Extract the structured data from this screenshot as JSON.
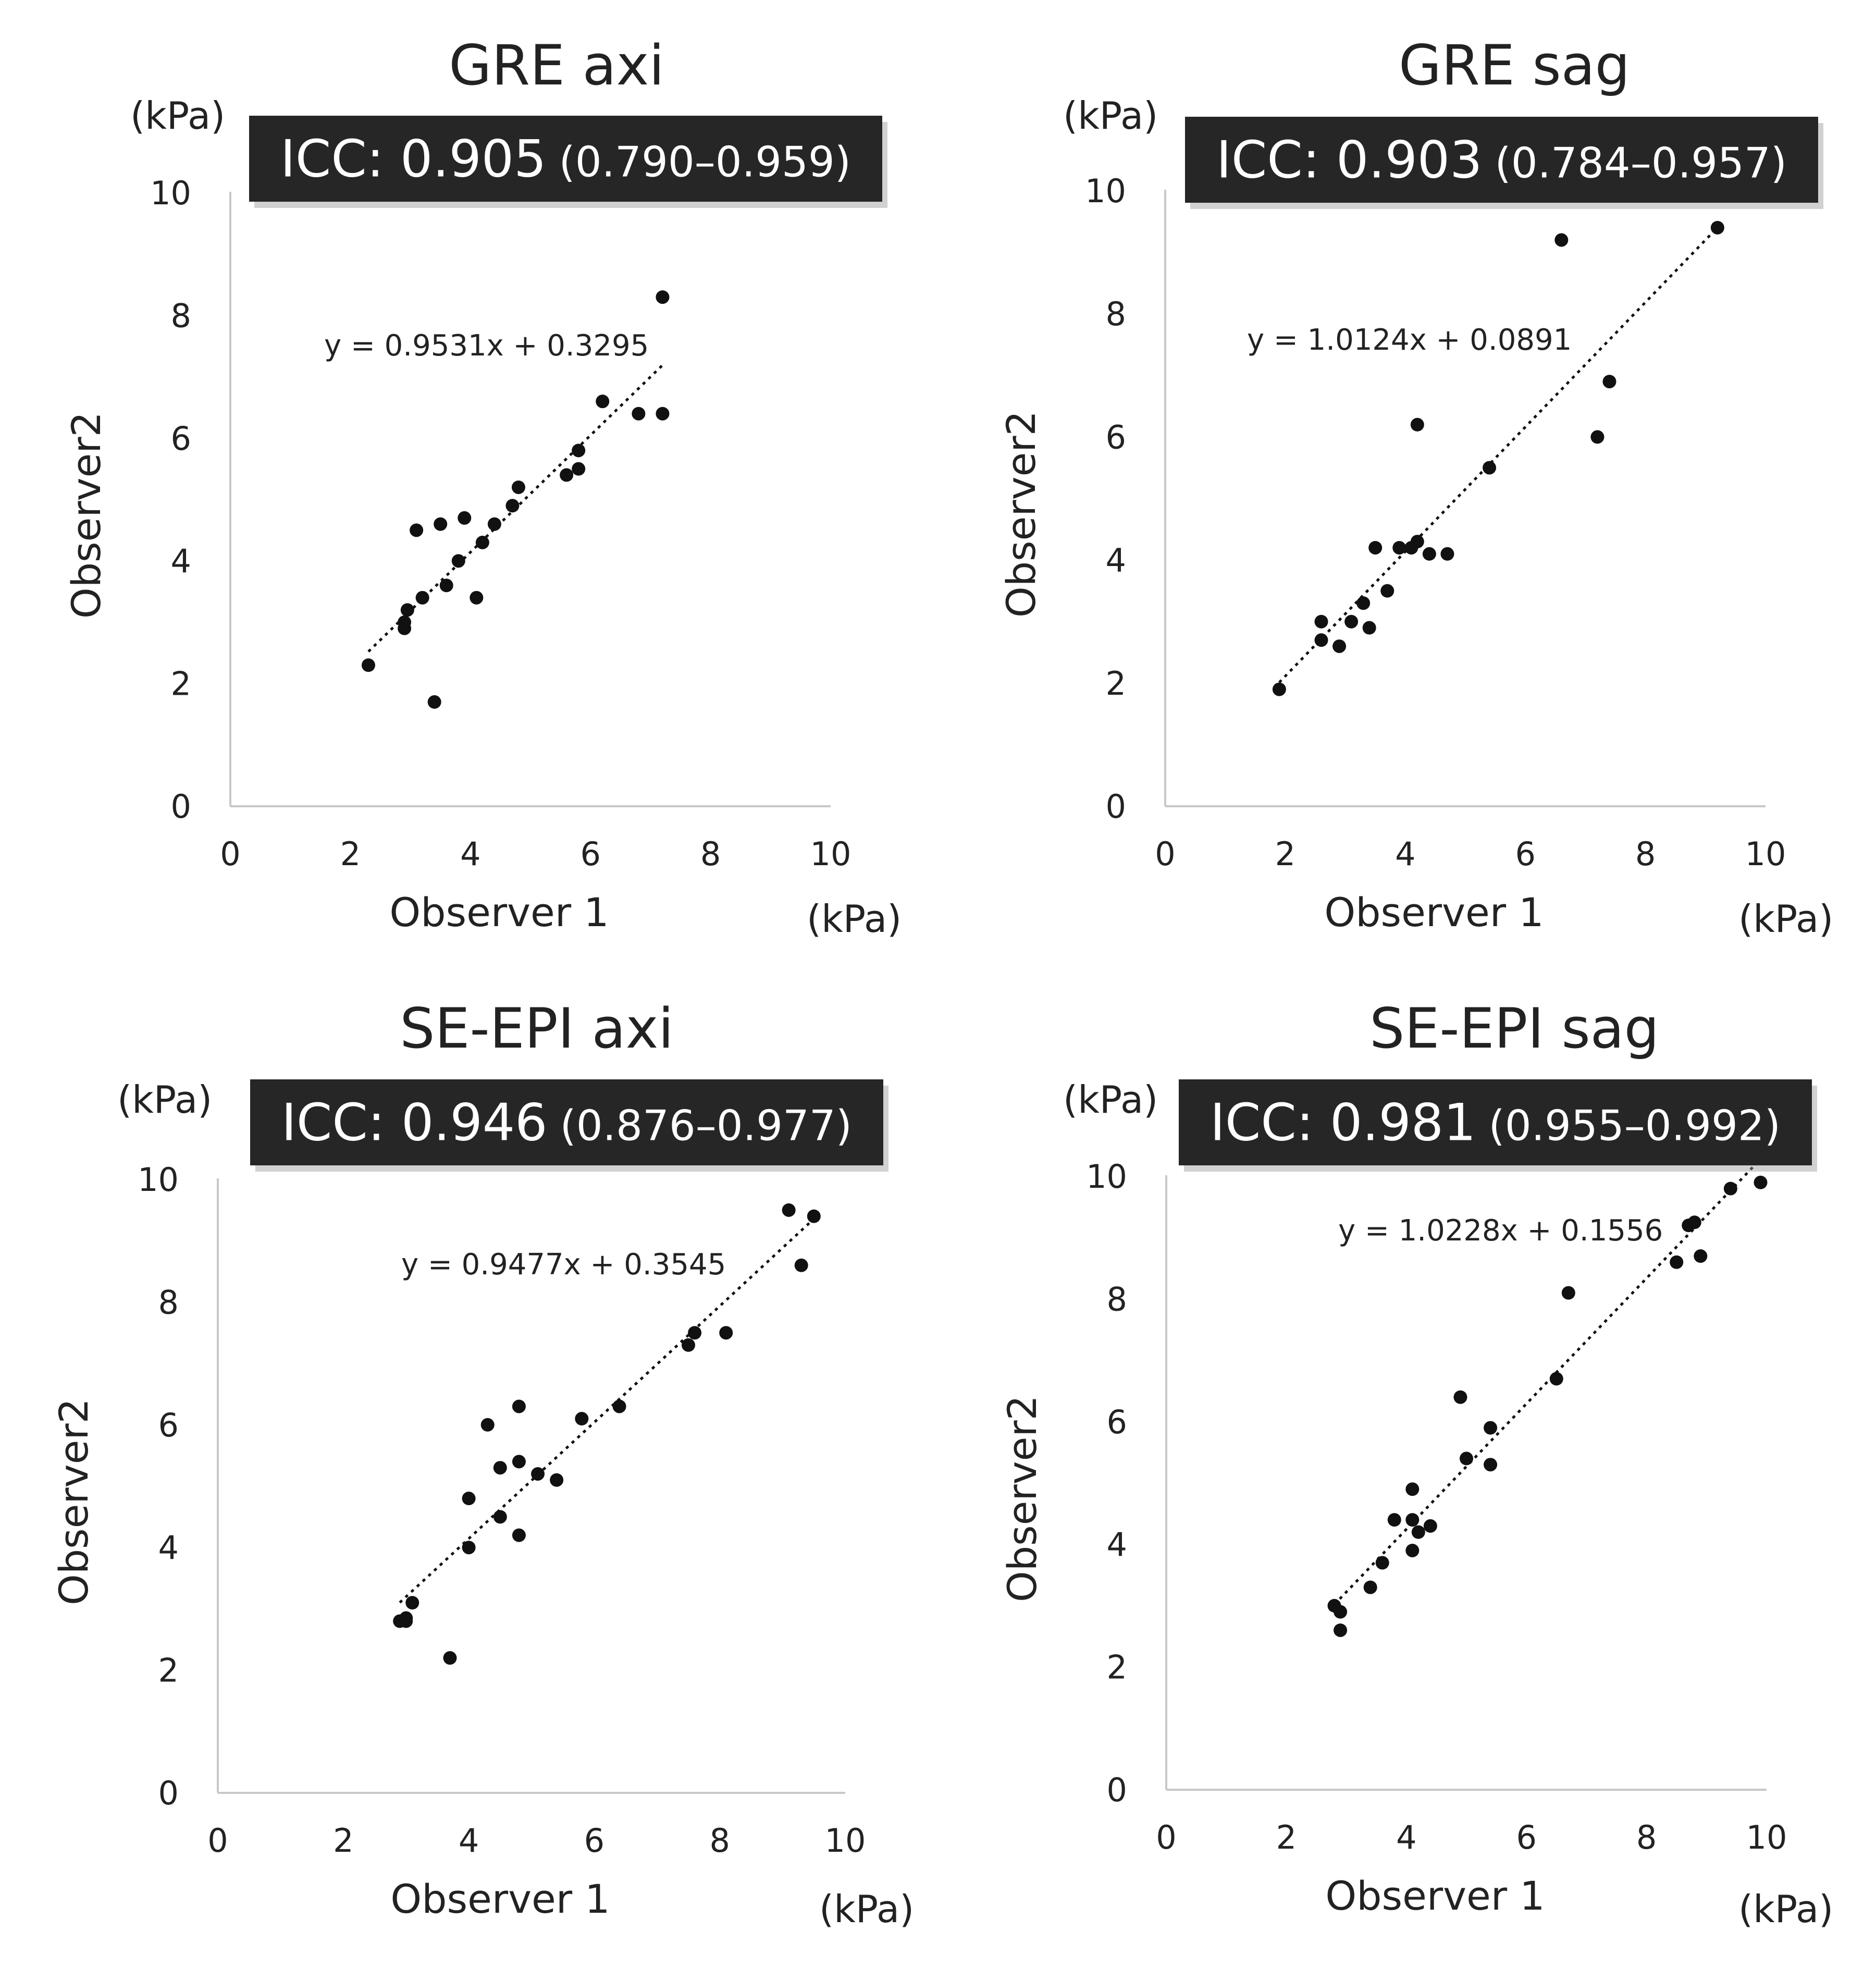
{
  "figure": {
    "x_unit": "(kPa)",
    "y_unit": "(kPa)",
    "xlabel": "Observer 1",
    "ylabel": "Observer2"
  },
  "chart_data": [
    {
      "type": "scatter",
      "title": "GRE axi",
      "icc_value": "ICC: 0.905",
      "icc_ci": "(0.790–0.959)",
      "equation": "y = 0.9531x + 0.3295",
      "trend": {
        "slope": 0.9531,
        "intercept": 0.3295,
        "x_range": [
          2.3,
          7.2
        ]
      },
      "xlabel": "Observer 1",
      "ylabel": "Observer2",
      "xlim": [
        0,
        10
      ],
      "ylim": [
        0,
        10
      ],
      "xticks": [
        "0",
        "2",
        "4",
        "6",
        "8",
        "10"
      ],
      "yticks": [
        "0",
        "2",
        "4",
        "6",
        "8",
        "10"
      ],
      "points": [
        [
          2.3,
          2.3
        ],
        [
          2.9,
          2.9
        ],
        [
          2.9,
          3.0
        ],
        [
          2.95,
          3.2
        ],
        [
          3.2,
          3.4
        ],
        [
          3.4,
          1.7
        ],
        [
          3.1,
          4.5
        ],
        [
          3.5,
          4.6
        ],
        [
          3.6,
          3.6
        ],
        [
          3.8,
          4.0
        ],
        [
          3.9,
          4.7
        ],
        [
          4.1,
          3.4
        ],
        [
          4.2,
          4.3
        ],
        [
          4.4,
          4.6
        ],
        [
          4.7,
          4.9
        ],
        [
          4.8,
          5.2
        ],
        [
          5.6,
          5.4
        ],
        [
          5.8,
          5.5
        ],
        [
          5.8,
          5.8
        ],
        [
          6.2,
          6.6
        ],
        [
          6.8,
          6.4
        ],
        [
          7.2,
          6.4
        ],
        [
          7.2,
          8.3
        ]
      ]
    },
    {
      "type": "scatter",
      "title": "GRE sag",
      "icc_value": "ICC: 0.903",
      "icc_ci": "(0.784–0.957)",
      "equation": "y = 1.0124x + 0.0891",
      "trend": {
        "slope": 1.0124,
        "intercept": 0.0891,
        "x_range": [
          1.9,
          9.2
        ]
      },
      "xlabel": "Observer 1",
      "ylabel": "Observer2",
      "xlim": [
        0,
        10
      ],
      "ylim": [
        0,
        10
      ],
      "xticks": [
        "0",
        "2",
        "4",
        "6",
        "8",
        "10"
      ],
      "yticks": [
        "0",
        "2",
        "4",
        "6",
        "8",
        "10"
      ],
      "points": [
        [
          1.9,
          1.9
        ],
        [
          2.6,
          2.7
        ],
        [
          2.6,
          3.0
        ],
        [
          2.9,
          2.6
        ],
        [
          3.1,
          3.0
        ],
        [
          3.3,
          3.3
        ],
        [
          3.4,
          2.9
        ],
        [
          3.5,
          4.2
        ],
        [
          3.7,
          3.5
        ],
        [
          3.9,
          4.2
        ],
        [
          4.1,
          4.2
        ],
        [
          4.2,
          4.3
        ],
        [
          4.2,
          6.2
        ],
        [
          4.4,
          4.1
        ],
        [
          4.7,
          4.1
        ],
        [
          5.4,
          5.5
        ],
        [
          6.6,
          9.2
        ],
        [
          7.2,
          6.0
        ],
        [
          7.4,
          6.9
        ],
        [
          9.2,
          9.4
        ]
      ]
    },
    {
      "type": "scatter",
      "title": "SE-EPI axi",
      "icc_value": "ICC: 0.946",
      "icc_ci": "(0.876–0.977)",
      "equation": "y = 0.9477x + 0.3545",
      "trend": {
        "slope": 0.9477,
        "intercept": 0.3545,
        "x_range": [
          2.9,
          9.5
        ]
      },
      "xlabel": "Observer 1",
      "ylabel": "Observer2",
      "xlim": [
        0,
        10
      ],
      "ylim": [
        0,
        10
      ],
      "xticks": [
        "0",
        "2",
        "4",
        "6",
        "8",
        "10"
      ],
      "yticks": [
        "0",
        "2",
        "4",
        "6",
        "8",
        "10"
      ],
      "points": [
        [
          2.9,
          2.8
        ],
        [
          3.0,
          2.8
        ],
        [
          3.0,
          2.85
        ],
        [
          3.1,
          3.1
        ],
        [
          3.7,
          2.2
        ],
        [
          4.0,
          4.0
        ],
        [
          4.0,
          4.8
        ],
        [
          4.3,
          6.0
        ],
        [
          4.5,
          5.3
        ],
        [
          4.5,
          4.5
        ],
        [
          4.8,
          5.4
        ],
        [
          4.8,
          6.3
        ],
        [
          4.8,
          4.2
        ],
        [
          5.1,
          5.2
        ],
        [
          5.4,
          5.1
        ],
        [
          5.8,
          6.1
        ],
        [
          6.4,
          6.3
        ],
        [
          7.5,
          7.3
        ],
        [
          7.6,
          7.5
        ],
        [
          8.1,
          7.5
        ],
        [
          9.1,
          9.5
        ],
        [
          9.3,
          8.6
        ],
        [
          9.5,
          9.4
        ]
      ]
    },
    {
      "type": "scatter",
      "title": "SE-EPI sag",
      "icc_value": "ICC: 0.981",
      "icc_ci": "(0.955–0.992)",
      "equation": "y = 1.0228x + 0.1556",
      "trend": {
        "slope": 1.0228,
        "intercept": 0.1556,
        "x_range": [
          2.8,
          9.9
        ]
      },
      "xlabel": "Observer 1",
      "ylabel": "Observer2",
      "xlim": [
        0,
        10
      ],
      "ylim": [
        0,
        10
      ],
      "xticks": [
        "0",
        "2",
        "4",
        "6",
        "8",
        "10"
      ],
      "yticks": [
        "0",
        "2",
        "4",
        "6",
        "8",
        "10"
      ],
      "points": [
        [
          2.8,
          3.0
        ],
        [
          2.9,
          2.9
        ],
        [
          2.9,
          2.6
        ],
        [
          3.4,
          3.3
        ],
        [
          3.6,
          3.7
        ],
        [
          3.8,
          4.4
        ],
        [
          4.1,
          4.4
        ],
        [
          4.1,
          3.9
        ],
        [
          4.1,
          4.9
        ],
        [
          4.2,
          4.2
        ],
        [
          4.4,
          4.3
        ],
        [
          4.9,
          6.4
        ],
        [
          5.0,
          5.4
        ],
        [
          5.4,
          5.3
        ],
        [
          5.4,
          5.9
        ],
        [
          6.5,
          6.7
        ],
        [
          6.7,
          8.1
        ],
        [
          8.5,
          8.6
        ],
        [
          8.7,
          9.2
        ],
        [
          8.8,
          9.25
        ],
        [
          8.9,
          8.7
        ],
        [
          9.4,
          9.8
        ],
        [
          9.9,
          9.9
        ]
      ]
    }
  ]
}
